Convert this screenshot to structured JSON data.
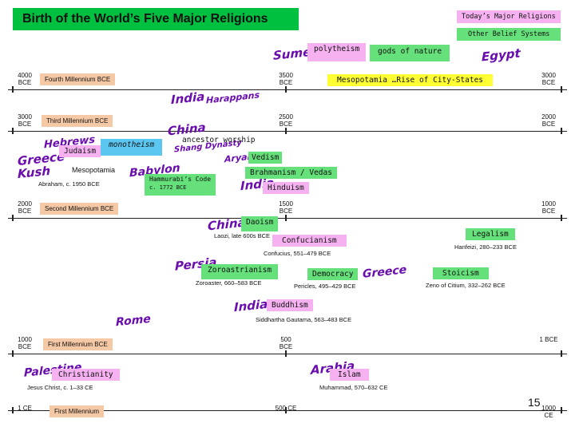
{
  "title": "Birth of the World’s Five Major Religions",
  "legend": {
    "major": "Today’s Major Religions",
    "other": "Other Belief Systems"
  },
  "colors": {
    "title_bg": "#00c040",
    "major_religions": "#f5b1f0",
    "other_beliefs": "#66e07a",
    "era_box": "#f6c9a6",
    "place_names": "#6a0dad"
  },
  "rows": [
    {
      "era": "Fourth Millennium BCE",
      "left": "4000 BCE",
      "mid": "3500 BCE",
      "right": "3000 BCE"
    },
    {
      "era": "Third Millennium BCE",
      "left": "3000 BCE",
      "mid": "2500 BCE",
      "right": "2000 BCE"
    },
    {
      "era": "Second Millennium BCE",
      "left": "2000 BCE",
      "mid": "1500 BCE",
      "right": "1000 BCE"
    },
    {
      "era": "First Millennium BCE",
      "left": "1000 BCE",
      "mid": "500 BCE",
      "right": "1 BCE"
    },
    {
      "era": "First Millennium",
      "left": "1 CE",
      "mid": "500 CE",
      "right": "1000 CE"
    }
  ],
  "places": {
    "sumer": "Sumer",
    "egypt": "Egypt",
    "india1": "India",
    "harappans": "Harappans",
    "china1": "China",
    "shang": "Shang Dynasty",
    "hebrews": "Hebrews",
    "greece1": "Greece",
    "kush": "Kush",
    "babylon": "Babylon",
    "aryans": "Aryans",
    "india2": "India",
    "china2": "China",
    "persia": "Persia",
    "greece2": "Greece",
    "india3": "India",
    "rome": "Rome",
    "palestine": "Palestine",
    "arabia": "Arabia"
  },
  "items": {
    "polytheism": "polytheism",
    "gods_of_nature": "gods of nature",
    "mesopotamia_rise": "Mesopotamia …Rise of City-States",
    "ancestor_worship": "ancestor worship",
    "monotheism": "monotheism",
    "judaism": "Judaism",
    "vedism": "Vedism",
    "mesopotamia": "Mesopotamia",
    "brahmanism": "Brahmanism / Vedas",
    "hammurabi": "Hammurabi’s Code",
    "hammurabi_date": "c. 1772 BCE",
    "abraham": "Abraham, c. 1950 BCE",
    "hinduism": "Hinduism",
    "daoism": "Daoism",
    "legalism": "Legalism",
    "laozi": "Laozi, late 600s BCE",
    "confucianism": "Confucianism",
    "hanfeizi": "Hanfeizi, 280–233 BCE",
    "confucius": "Confucius, 551–479 BCE",
    "zoroastrianism": "Zoroastrianism",
    "democracy": "Democracy",
    "stoicism": "Stoicism",
    "zoroaster": "Zoroaster, 660–583 BCE",
    "pericles": "Pericles, 495–429 BCE",
    "zeno": "Zeno of Citium, 332–262 BCE",
    "buddhism": "Buddhism",
    "siddhartha": "Siddhartha Gautama, 563–483 BCE",
    "christianity": "Christianity",
    "islam": "Islam",
    "jesus": "Jesus Christ, c. 1–33 CE",
    "muhammad": "Muhammad, 570–632 CE"
  },
  "page_number": "15"
}
